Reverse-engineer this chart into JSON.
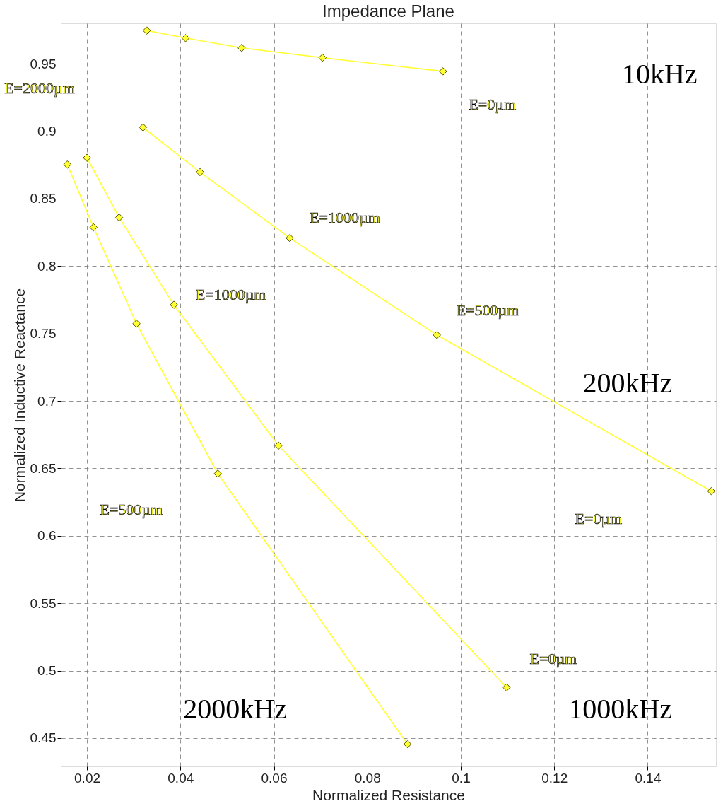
{
  "chart_data": {
    "type": "line",
    "title": "Impedance Plane",
    "xlabel": "Normalized Resistance",
    "ylabel": "Normalized Inductive Reactance",
    "xlim": [
      0.0144,
      0.1546
    ],
    "ylim": [
      0.429,
      0.98
    ],
    "xticks": [
      0.02,
      0.04,
      0.06,
      0.08,
      {
        "value": 0.1,
        "label": "0.1"
      },
      0.12,
      0.14
    ],
    "yticks": [
      0.45,
      {
        "value": 0.5,
        "label": "0.5"
      },
      0.55,
      {
        "value": 0.6,
        "label": "0.6"
      },
      0.65,
      {
        "value": 0.7,
        "label": "0.7"
      },
      0.75,
      {
        "value": 0.8,
        "label": "0.8"
      },
      0.85,
      {
        "value": 0.9,
        "label": "0.9"
      },
      0.95
    ],
    "grid": true,
    "marker": "diamond",
    "line_style": "solid",
    "series": [
      {
        "color": "#ffff33",
        "x": [
          0.0328,
          0.0411,
          0.0531,
          0.0704,
          0.0962
        ],
        "values": [
          0.9747,
          0.9691,
          0.9618,
          0.9545,
          0.9444
        ]
      },
      {
        "color": "#ffff33",
        "x": [
          0.032,
          0.0442,
          0.0634,
          0.0949,
          0.1536
        ],
        "values": [
          0.9028,
          0.8697,
          0.8208,
          0.7489,
          0.6331
        ]
      },
      {
        "color": "#ffff33",
        "x": [
          0.02,
          0.0269,
          0.0386,
          0.061,
          0.1098
        ],
        "values": [
          0.8803,
          0.836,
          0.7713,
          0.6669,
          0.4876
        ]
      },
      {
        "color": "#ffff33",
        "x": [
          0.0158,
          0.0214,
          0.0306,
          0.048,
          0.0886
        ],
        "values": [
          0.8753,
          0.8287,
          0.7573,
          0.6461,
          0.4455
        ]
      }
    ],
    "annotations": [
      "E=2000µm",
      "E=0µm",
      "E=1000µm",
      "E=1000µm",
      "E=500µm",
      "E=0µm",
      "E=500µm",
      "E=0µm",
      "10kHz",
      "200kHz",
      "2000kHz",
      "1000kHz"
    ]
  }
}
